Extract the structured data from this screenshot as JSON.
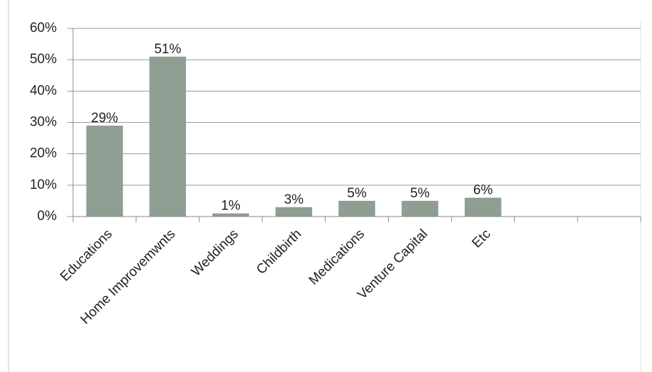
{
  "chart_data": {
    "type": "bar",
    "categories": [
      "Educations",
      "Home Improvemwnts",
      "Weddings",
      "Childbirth",
      "Medications",
      "Venture Capital",
      "Etc",
      null,
      null
    ],
    "values": [
      29,
      51,
      1,
      3,
      5,
      5,
      6,
      null,
      null
    ],
    "value_labels": [
      "29%",
      "51%",
      "1%",
      "3%",
      "5%",
      "5%",
      "6%",
      null,
      null
    ],
    "color": "#8f9e92",
    "ylim": [
      0,
      60
    ],
    "yticks": [
      {
        "value": 0,
        "label": "0%"
      },
      {
        "value": 10,
        "label": "10%"
      },
      {
        "value": 20,
        "label": "20%"
      },
      {
        "value": 30,
        "label": "30%"
      },
      {
        "value": 40,
        "label": "40%"
      },
      {
        "value": 50,
        "label": "50%"
      },
      {
        "value": 60,
        "label": "60%"
      }
    ],
    "grid": true
  }
}
